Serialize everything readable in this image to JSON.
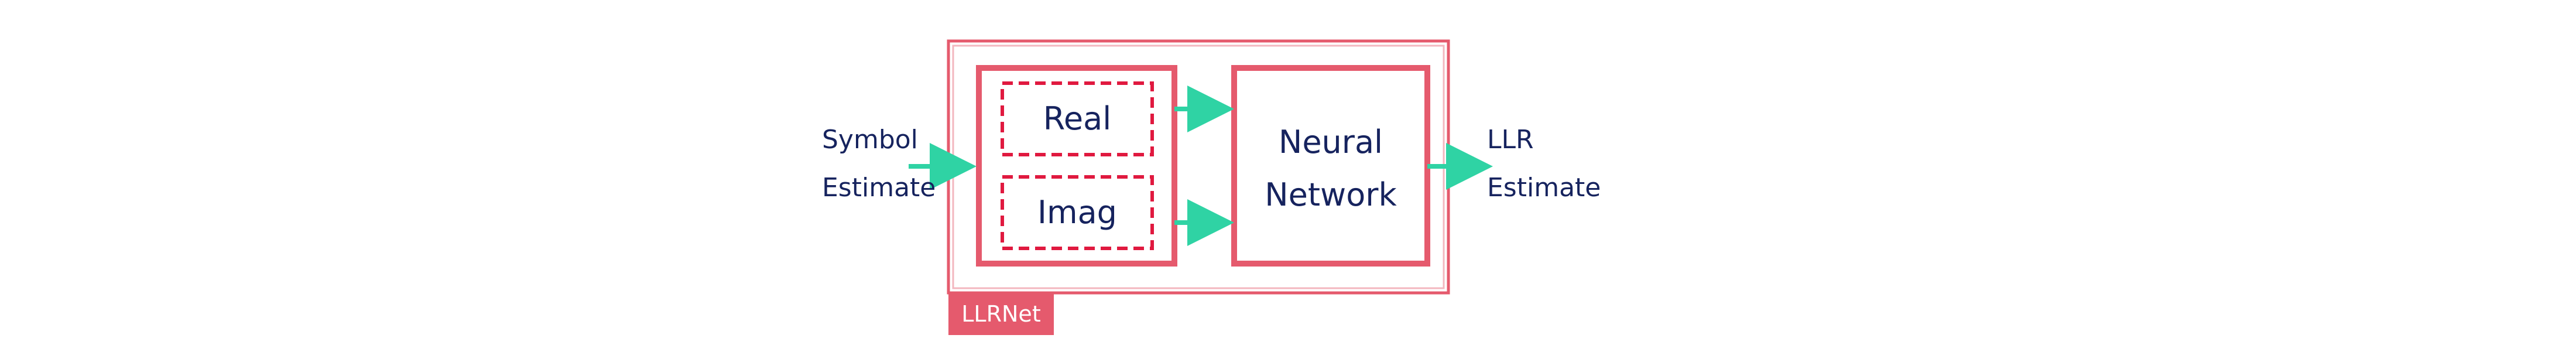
{
  "diagram": {
    "input_label_line1": "Symbol",
    "input_label_line2": "Estimate",
    "block_label": "LLRNet",
    "real_label": "Real",
    "imag_label": "Imag",
    "network_label_line1": "Neural",
    "network_label_line2": "Network",
    "output_label_line1": "LLR",
    "output_label_line2": "Estimate"
  },
  "colors": {
    "box_stroke": "#e55a6d",
    "dashed_stroke": "#e0193f",
    "arrow": "#2fd3a4",
    "text": "#16235e"
  }
}
